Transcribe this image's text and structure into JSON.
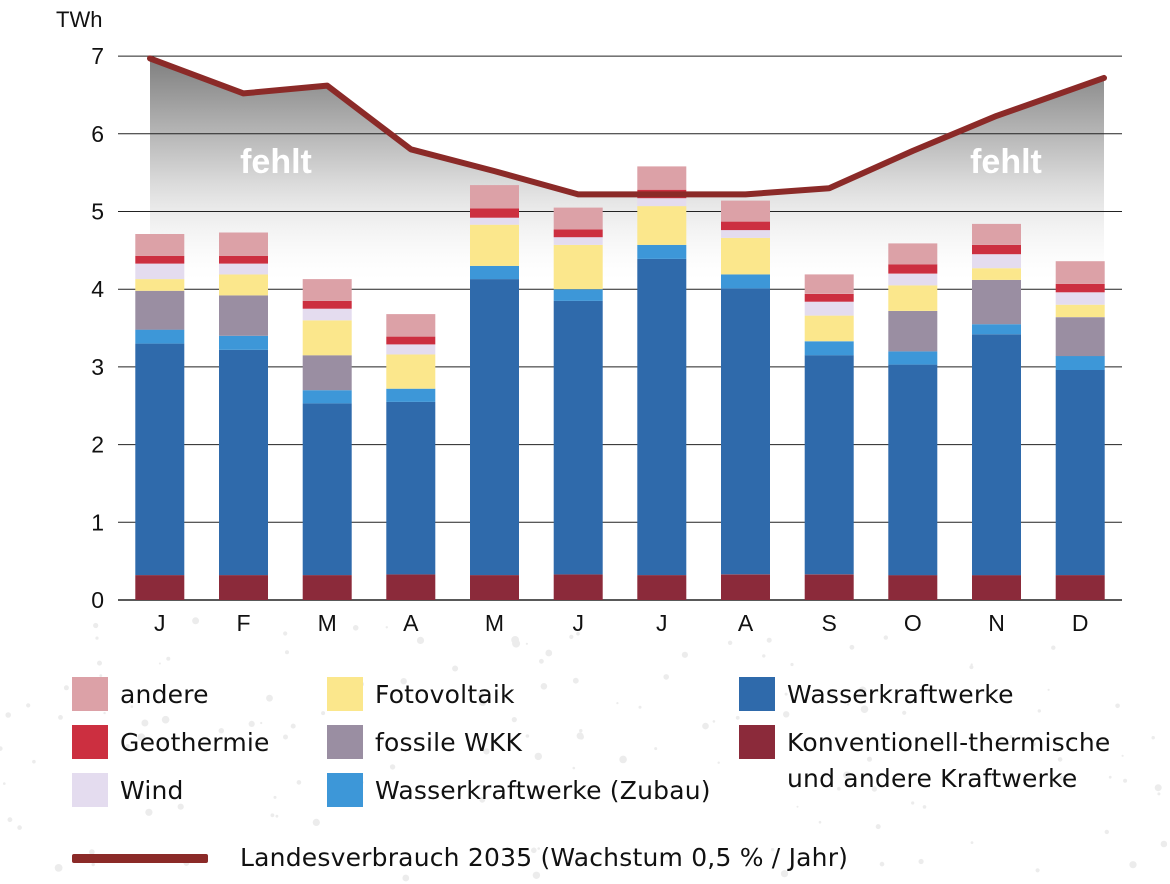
{
  "chart_data": {
    "type": "bar",
    "stacked": true,
    "yunit": "TWh",
    "ylim": [
      0,
      7
    ],
    "yticks": [
      "0",
      "1",
      "2",
      "3",
      "4",
      "5",
      "6",
      "7"
    ],
    "grid": true,
    "categories": [
      "J",
      "F",
      "M",
      "A",
      "M",
      "J",
      "J",
      "A",
      "S",
      "O",
      "N",
      "D"
    ],
    "series": [
      {
        "key": "konv",
        "name": "Konventionell-thermische\nund andere Kraftwerke",
        "color": "#8b2a3a",
        "values": [
          0.32,
          0.32,
          0.32,
          0.33,
          0.32,
          0.33,
          0.32,
          0.33,
          0.33,
          0.32,
          0.32,
          0.32
        ]
      },
      {
        "key": "wasser",
        "name": "Wasserkraftwerke",
        "color": "#2f6aab",
        "values": [
          2.98,
          2.9,
          2.21,
          2.22,
          3.81,
          3.52,
          4.07,
          3.68,
          2.82,
          2.71,
          3.1,
          2.64
        ]
      },
      {
        "key": "zubau",
        "name": "Wasserkraftwerke (Zubau)",
        "color": "#3d97d8",
        "values": [
          0.18,
          0.18,
          0.17,
          0.17,
          0.17,
          0.15,
          0.18,
          0.18,
          0.18,
          0.17,
          0.13,
          0.18
        ]
      },
      {
        "key": "wkk",
        "name": "fossile WKK",
        "color": "#9a8ea2",
        "values": [
          0.5,
          0.52,
          0.45,
          0.0,
          0.0,
          0.0,
          0.0,
          0.0,
          0.0,
          0.52,
          0.57,
          0.5
        ]
      },
      {
        "key": "pv",
        "name": "Fotovoltaik",
        "color": "#fbe78c",
        "values": [
          0.15,
          0.27,
          0.45,
          0.44,
          0.53,
          0.57,
          0.5,
          0.47,
          0.33,
          0.33,
          0.15,
          0.16
        ]
      },
      {
        "key": "wind",
        "name": "Wind",
        "color": "#e4dcef",
        "values": [
          0.2,
          0.14,
          0.15,
          0.13,
          0.09,
          0.1,
          0.1,
          0.1,
          0.18,
          0.15,
          0.18,
          0.16
        ]
      },
      {
        "key": "geo",
        "name": "Geothermie",
        "color": "#cc2f40",
        "values": [
          0.1,
          0.1,
          0.1,
          0.1,
          0.12,
          0.1,
          0.11,
          0.11,
          0.1,
          0.12,
          0.12,
          0.11
        ]
      },
      {
        "key": "andere",
        "name": "andere",
        "color": "#dca1a7",
        "values": [
          0.28,
          0.3,
          0.28,
          0.29,
          0.3,
          0.28,
          0.3,
          0.27,
          0.25,
          0.27,
          0.27,
          0.29
        ]
      }
    ],
    "line": {
      "name": "Landesverbrauch 2035 (Wachstum 0,5 % / Jahr)",
      "color": "#8b2a28",
      "x_positions": [
        0,
        1,
        2,
        3,
        4,
        5,
        6,
        7,
        8,
        9,
        10,
        11
      ],
      "values": [
        6.97,
        6.52,
        6.62,
        5.8,
        5.52,
        5.22,
        5.22,
        5.22,
        5.3,
        5.78,
        6.23,
        6.72
      ]
    },
    "annotations": [
      "fehlt",
      "fehlt"
    ]
  },
  "legend_order": [
    [
      "andere",
      "geo",
      "wind"
    ],
    [
      "pv",
      "wkk",
      "zubau"
    ],
    [
      "wasser",
      "konv"
    ]
  ]
}
